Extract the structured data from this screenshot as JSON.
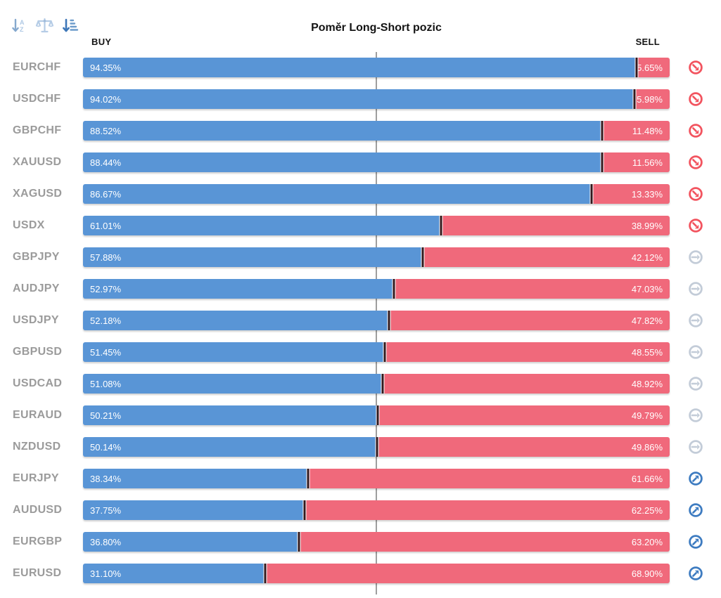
{
  "header": {
    "title": "Poměr Long-Short pozic",
    "buy_label": "BUY",
    "sell_label": "SELL",
    "toolbar_icons": [
      "sort-alphabetical-icon",
      "balance-scale-icon",
      "sort-amount-icon"
    ]
  },
  "colors": {
    "buy_bar": "#5995d6",
    "sell_bar": "#f0697b",
    "junction_marker": "#33191d",
    "pair_label": "#9b9b9b",
    "center_line": "#9e9e9e",
    "trend_down_icon": "#f2545f",
    "trend_flat_icon": "#c3ccd8",
    "trend_up_icon": "#3e7cc1",
    "toolbar_inactive_icon": "#a9c6e2",
    "toolbar_active_icon": "#4a80be"
  },
  "chart_data": {
    "type": "bar",
    "orientation": "horizontal-stacked",
    "title": "Poměr Long-Short pozic",
    "xlim": [
      0,
      100
    ],
    "center_line": 50,
    "grid": false,
    "legend_position": "top (BUY left, SELL right)",
    "categories": [
      "EURCHF",
      "USDCHF",
      "GBPCHF",
      "XAUUSD",
      "XAGUSD",
      "USDX",
      "GBPJPY",
      "AUDJPY",
      "USDJPY",
      "GBPUSD",
      "USDCAD",
      "EURAUD",
      "NZDUSD",
      "EURJPY",
      "AUDUSD",
      "EURGBP",
      "EURUSD"
    ],
    "series": [
      {
        "name": "BUY",
        "color": "#5995d6",
        "values": [
          94.35,
          94.02,
          88.52,
          88.44,
          86.67,
          61.01,
          57.88,
          52.97,
          52.18,
          51.45,
          51.08,
          50.21,
          50.14,
          38.34,
          37.75,
          36.8,
          31.1
        ]
      },
      {
        "name": "SELL",
        "color": "#f0697b",
        "values": [
          5.65,
          5.98,
          11.48,
          11.56,
          13.33,
          38.99,
          42.12,
          47.03,
          47.82,
          48.55,
          48.92,
          49.79,
          49.86,
          61.66,
          62.25,
          63.2,
          68.9
        ]
      }
    ],
    "trend_icons": [
      "down",
      "down",
      "down",
      "down",
      "down",
      "down",
      "flat",
      "flat",
      "flat",
      "flat",
      "flat",
      "flat",
      "flat",
      "up",
      "up",
      "up",
      "up"
    ]
  }
}
